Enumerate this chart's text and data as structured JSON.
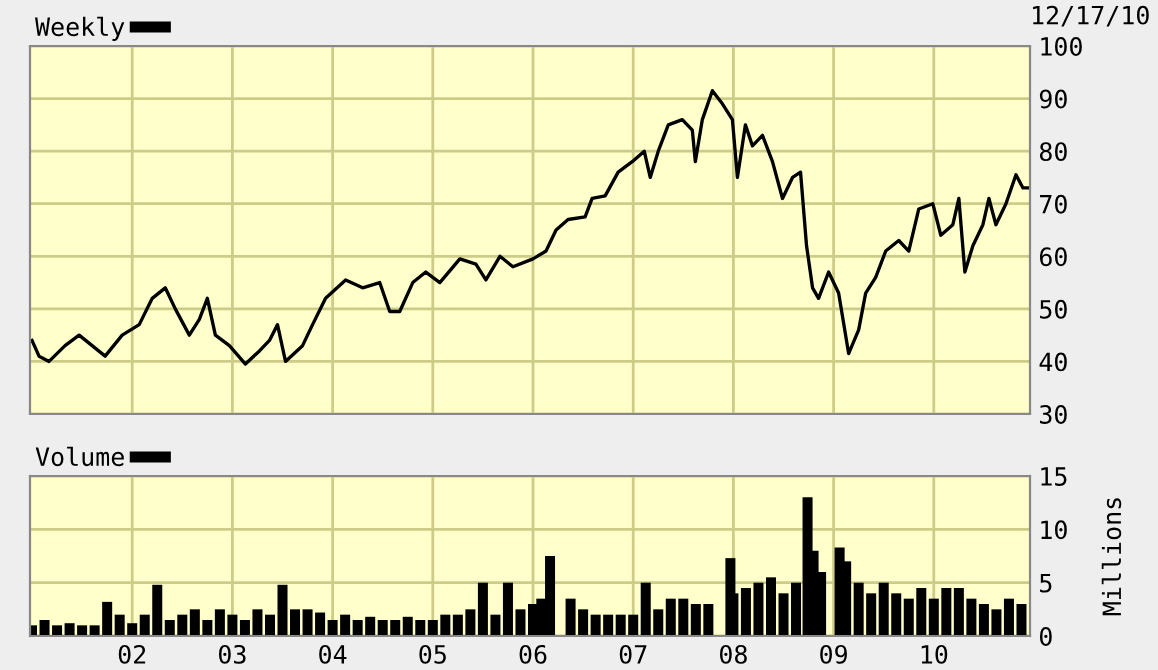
{
  "chart_data": [
    {
      "type": "line",
      "annotations": [
        "12/17/10"
      ],
      "legend": "top left",
      "grid": true,
      "tick_labels": "y",
      "xlim": [
        2000.98,
        2010.96
      ],
      "xticks": [
        2002,
        2003,
        2004,
        2005,
        2006,
        2007,
        2008,
        2009,
        2010
      ],
      "ylim": [
        30,
        100
      ],
      "yticks": [
        30,
        40,
        50,
        60,
        70,
        80,
        90,
        100
      ],
      "series": [
        {
          "name": "Weekly",
          "color": "#000000",
          "x": [
            2001.0,
            2001.07,
            2001.17,
            2001.33,
            2001.47,
            2001.6,
            2001.73,
            2001.9,
            2002.07,
            2002.2,
            2002.33,
            2002.43,
            2002.57,
            2002.67,
            2002.75,
            2002.83,
            2002.97,
            2003.13,
            2003.27,
            2003.37,
            2003.45,
            2003.53,
            2003.7,
            2003.8,
            2003.93,
            2004.13,
            2004.3,
            2004.47,
            2004.57,
            2004.67,
            2004.8,
            2004.93,
            2005.07,
            2005.27,
            2005.43,
            2005.53,
            2005.67,
            2005.8,
            2006.0,
            2006.13,
            2006.23,
            2006.35,
            2006.52,
            2006.59,
            2006.72,
            2006.85,
            2006.99,
            2007.11,
            2007.17,
            2007.25,
            2007.35,
            2007.49,
            2007.59,
            2007.62,
            2007.69,
            2007.79,
            2007.89,
            2007.99,
            2008.04,
            2008.12,
            2008.19,
            2008.29,
            2008.39,
            2008.49,
            2008.59,
            2008.67,
            2008.73,
            2008.79,
            2008.85,
            2008.95,
            2009.05,
            2009.15,
            2009.25,
            2009.32,
            2009.42,
            2009.52,
            2009.65,
            2009.75,
            2009.85,
            2009.99,
            2010.07,
            2010.19,
            2010.25,
            2010.31,
            2010.39,
            2010.49,
            2010.55,
            2010.62,
            2010.72,
            2010.82,
            2010.89,
            2010.95
          ],
          "values": [
            44,
            41,
            40,
            43,
            45,
            43,
            41,
            45,
            47,
            52,
            54,
            50,
            45,
            48,
            52,
            45,
            43,
            39.5,
            42,
            44,
            47,
            40,
            43,
            47,
            52,
            55.5,
            54,
            55,
            49.5,
            49.5,
            55,
            57,
            55,
            59.5,
            58.5,
            55.5,
            60,
            58,
            59.5,
            61,
            65,
            67,
            67.5,
            71,
            71.5,
            76,
            78,
            80,
            75,
            80,
            85,
            86,
            84,
            78,
            86,
            91.5,
            89,
            86,
            75,
            85,
            81,
            83,
            78,
            71,
            75,
            76,
            62,
            54,
            52,
            57,
            53,
            41.5,
            46,
            53,
            56,
            61,
            63,
            61,
            69,
            70,
            64,
            66,
            71,
            57,
            62,
            66,
            71,
            66,
            70,
            75.5,
            73,
            73
          ]
        }
      ]
    },
    {
      "type": "bar",
      "legend": "top left",
      "grid": true,
      "ylabel": "Millions",
      "xlim": [
        2000.98,
        2010.96
      ],
      "xticks": [
        {
          "value": 2002,
          "label": "02"
        },
        {
          "value": 2003,
          "label": "03"
        },
        {
          "value": 2004,
          "label": "04"
        },
        {
          "value": 2005,
          "label": "05"
        },
        {
          "value": 2006,
          "label": "06"
        },
        {
          "value": 2007,
          "label": "07"
        },
        {
          "value": 2008,
          "label": "08"
        },
        {
          "value": 2009,
          "label": "09"
        },
        {
          "value": 2010,
          "label": "10"
        }
      ],
      "ylim": [
        0,
        15
      ],
      "yticks": [
        0,
        5,
        10,
        15
      ],
      "series": [
        {
          "name": "Volume",
          "color": "#000000",
          "x": [
            2001.0,
            2001.125,
            2001.25,
            2001.375,
            2001.5,
            2001.625,
            2001.75,
            2001.875,
            2002.0,
            2002.125,
            2002.25,
            2002.375,
            2002.5,
            2002.625,
            2002.75,
            2002.875,
            2003.0,
            2003.125,
            2003.25,
            2003.375,
            2003.5,
            2003.625,
            2003.75,
            2003.875,
            2004.0,
            2004.125,
            2004.25,
            2004.375,
            2004.5,
            2004.625,
            2004.75,
            2004.875,
            2005.0,
            2005.125,
            2005.25,
            2005.375,
            2005.5,
            2005.625,
            2005.75,
            2005.875,
            2006.0,
            2006.083,
            2006.17,
            2006.375,
            2006.5,
            2006.625,
            2006.75,
            2006.875,
            2007.0,
            2007.125,
            2007.25,
            2007.375,
            2007.5,
            2007.625,
            2007.75,
            2007.97,
            2008.0,
            2008.125,
            2008.25,
            2008.375,
            2008.5,
            2008.625,
            2008.74,
            2008.8,
            2008.875,
            2009.06,
            2009.125,
            2009.25,
            2009.375,
            2009.5,
            2009.625,
            2009.75,
            2009.875,
            2010.0,
            2010.125,
            2010.25,
            2010.375,
            2010.5,
            2010.625,
            2010.75,
            2010.875
          ],
          "values": [
            1.0,
            1.5,
            1.0,
            1.2,
            1.0,
            1.0,
            3.2,
            2.0,
            1.2,
            2.0,
            4.8,
            1.5,
            2.0,
            2.5,
            1.5,
            2.5,
            2.0,
            1.5,
            2.5,
            2.0,
            4.8,
            2.5,
            2.5,
            2.2,
            1.5,
            2.0,
            1.5,
            1.8,
            1.5,
            1.5,
            1.8,
            1.5,
            1.5,
            2.0,
            2.0,
            2.5,
            5.0,
            2.0,
            5.0,
            2.5,
            3.0,
            3.5,
            7.5,
            3.5,
            2.5,
            2.0,
            2.0,
            2.0,
            2.0,
            5.0,
            2.5,
            3.5,
            3.5,
            3.0,
            3.0,
            7.3,
            4.0,
            4.5,
            5.0,
            5.5,
            4.0,
            5.0,
            13.0,
            8.0,
            6.0,
            8.3,
            7.0,
            5.0,
            4.0,
            5.0,
            4.0,
            3.5,
            4.5,
            3.5,
            4.5,
            4.5,
            3.5,
            3.0,
            2.5,
            3.5,
            3.0
          ]
        }
      ]
    }
  ]
}
